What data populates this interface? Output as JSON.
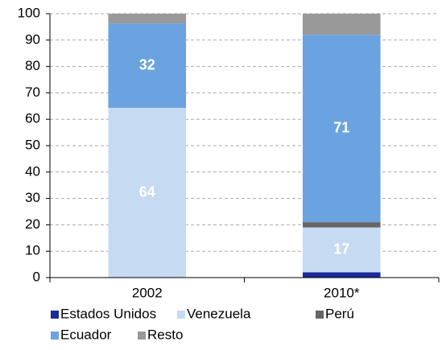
{
  "chart_data": {
    "type": "stacked_bar",
    "categories": [
      "2002",
      "2010*"
    ],
    "series": [
      {
        "name": "Estados Unidos",
        "color": "#1c2a99",
        "values": [
          0,
          2
        ]
      },
      {
        "name": "Venezuela",
        "color": "#c6daf2",
        "values": [
          64.3,
          17
        ],
        "value_labels": [
          "64",
          "17"
        ]
      },
      {
        "name": "Perú",
        "color": "#666666",
        "values": [
          0,
          2
        ]
      },
      {
        "name": "Ecuador",
        "color": "#6ba3e0",
        "values": [
          32,
          71
        ],
        "value_labels": [
          "32",
          "71"
        ]
      },
      {
        "name": "Resto",
        "color": "#999999",
        "values": [
          3.7,
          8
        ]
      }
    ],
    "ylim": [
      0,
      100
    ],
    "yticks": [
      0,
      10,
      20,
      30,
      40,
      50,
      60,
      70,
      80,
      90,
      100
    ],
    "grid": true
  }
}
